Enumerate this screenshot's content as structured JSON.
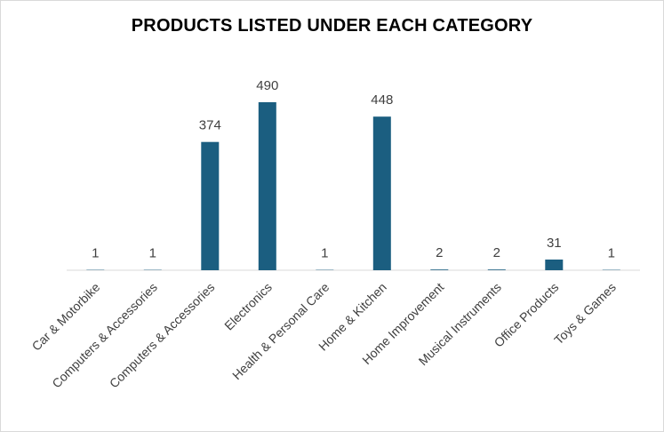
{
  "chart_data": {
    "type": "bar",
    "title": "PRODUCTS LISTED UNDER EACH CATEGORY",
    "categories": [
      "Car & Motorbike",
      "Computers & Accessories",
      "Computers & Accessories",
      "Electronics",
      "Health & Personal Care",
      "Home & Kitchen",
      "Home Improvement",
      "Musical Instruments",
      "Office Products",
      "Toys & Games"
    ],
    "values": [
      1,
      1,
      374,
      490,
      1,
      448,
      2,
      2,
      31,
      1
    ],
    "data_labels": true,
    "ylim": [
      0,
      490
    ],
    "grid": false,
    "legend": "none",
    "bar_color": "#1b5e80"
  }
}
